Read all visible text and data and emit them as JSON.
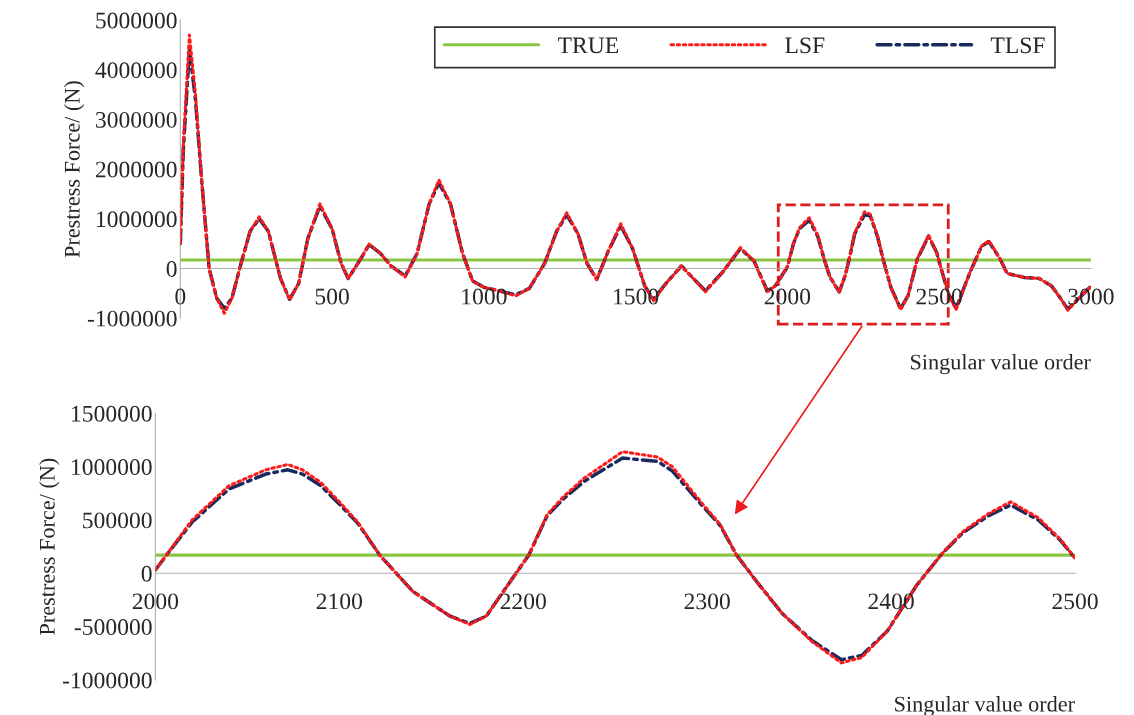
{
  "chart_data": [
    {
      "type": "line",
      "ylabel": "Prestress Force/ (N)",
      "xlabel": "Singular value order",
      "xlim": [
        0,
        3000
      ],
      "xticks": [
        0,
        500,
        1000,
        1500,
        2000,
        2500,
        3000
      ],
      "ylim": [
        -1000000,
        5000000
      ],
      "yticks": [
        -1000000,
        0,
        1000000,
        2000000,
        3000000,
        4000000,
        5000000
      ],
      "legend": "top",
      "series": [
        {
          "name": "TRUE",
          "color": "#8cc443",
          "line_style": "solid",
          "x": [
            0,
            3000
          ],
          "values": [
            170000,
            170000
          ]
        },
        {
          "name": "LSF",
          "color": "#ff1a1a",
          "line_style": "dotted",
          "x": [
            0,
            10,
            30,
            50,
            70,
            95,
            120,
            145,
            170,
            200,
            230,
            260,
            290,
            330,
            360,
            390,
            420,
            460,
            500,
            530,
            553,
            590,
            622,
            660,
            694,
            741,
            780,
            820,
            852,
            890,
            930,
            963,
            1000,
            1050,
            1105,
            1150,
            1200,
            1240,
            1273,
            1310,
            1340,
            1372,
            1410,
            1451,
            1490,
            1530,
            1559,
            1600,
            1651,
            1690,
            1730,
            1790,
            1845,
            1890,
            1934,
            1960,
            2000,
            2020,
            2040,
            2072,
            2100,
            2122,
            2140,
            2171,
            2190,
            2203,
            2222,
            2254,
            2273,
            2297,
            2316,
            2341,
            2373,
            2398,
            2428,
            2465,
            2492,
            2500,
            2530,
            2556,
            2600,
            2640,
            2664,
            2700,
            2724,
            2780,
            2829,
            2870,
            2900,
            2924,
            2960,
            2997
          ],
          "values": [
            500000,
            2500000,
            4700000,
            3500000,
            1800000,
            0,
            -600000,
            -900000,
            -600000,
            100000,
            750000,
            1040000,
            750000,
            -200000,
            -630000,
            -300000,
            600000,
            1300000,
            800000,
            100000,
            -200000,
            150000,
            490000,
            300000,
            50000,
            -170000,
            300000,
            1300000,
            1780000,
            1300000,
            300000,
            -250000,
            -380000,
            -450000,
            -550000,
            -400000,
            100000,
            750000,
            1120000,
            700000,
            100000,
            -220000,
            350000,
            900000,
            400000,
            -350000,
            -650000,
            -300000,
            50000,
            -200000,
            -470000,
            -50000,
            420000,
            150000,
            -470000,
            -350000,
            30000,
            500000,
            820000,
            1020000,
            670000,
            170000,
            -170000,
            -480000,
            -150000,
            170000,
            720000,
            1140000,
            1090000,
            660000,
            170000,
            -380000,
            -830000,
            -540000,
            190000,
            670000,
            320000,
            140000,
            -500000,
            -830000,
            -100000,
            450000,
            560000,
            200000,
            -100000,
            -180000,
            -200000,
            -350000,
            -600000,
            -840000,
            -600000,
            -380000
          ]
        },
        {
          "name": "TLSF",
          "color": "#1b2a5e",
          "line_style": "dashdot",
          "x": [
            0,
            10,
            30,
            50,
            70,
            95,
            120,
            145,
            170,
            200,
            230,
            260,
            290,
            330,
            360,
            390,
            420,
            460,
            500,
            530,
            553,
            590,
            622,
            660,
            694,
            741,
            780,
            820,
            852,
            890,
            930,
            963,
            1000,
            1050,
            1105,
            1150,
            1200,
            1240,
            1273,
            1310,
            1340,
            1372,
            1410,
            1451,
            1490,
            1530,
            1559,
            1600,
            1651,
            1690,
            1730,
            1790,
            1845,
            1890,
            1934,
            1960,
            2000,
            2020,
            2040,
            2072,
            2100,
            2122,
            2140,
            2171,
            2190,
            2203,
            2222,
            2254,
            2273,
            2297,
            2316,
            2341,
            2373,
            2398,
            2428,
            2465,
            2492,
            2500,
            2530,
            2556,
            2600,
            2640,
            2664,
            2700,
            2724,
            2780,
            2829,
            2870,
            2900,
            2924,
            2960,
            2997
          ],
          "values": [
            500000,
            2400000,
            4400000,
            3400000,
            1800000,
            0,
            -600000,
            -800000,
            -600000,
            100000,
            750000,
            1000000,
            750000,
            -200000,
            -620000,
            -300000,
            600000,
            1260000,
            800000,
            100000,
            -200000,
            150000,
            480000,
            300000,
            50000,
            -150000,
            300000,
            1300000,
            1720000,
            1300000,
            300000,
            -250000,
            -380000,
            -450000,
            -530000,
            -400000,
            100000,
            750000,
            1080000,
            700000,
            100000,
            -220000,
            350000,
            860000,
            400000,
            -350000,
            -620000,
            -300000,
            50000,
            -200000,
            -450000,
            -50000,
            400000,
            150000,
            -450000,
            -350000,
            30000,
            500000,
            800000,
            970000,
            650000,
            170000,
            -170000,
            -470000,
            -150000,
            170000,
            700000,
            1080000,
            1060000,
            640000,
            170000,
            -380000,
            -810000,
            -540000,
            190000,
            650000,
            320000,
            140000,
            -500000,
            -800000,
            -100000,
            450000,
            540000,
            200000,
            -100000,
            -180000,
            -200000,
            -350000,
            -600000,
            -820000,
            -600000,
            -380000
          ]
        }
      ]
    },
    {
      "type": "line",
      "ylabel": "Prestress Force/ (N)",
      "xlabel": "Singular value order",
      "xlim": [
        2000,
        2500
      ],
      "xticks": [
        2000,
        2100,
        2200,
        2300,
        2400,
        2500
      ],
      "ylim": [
        -1000000,
        1500000
      ],
      "yticks": [
        -1000000,
        -500000,
        0,
        500000,
        1000000,
        1500000
      ],
      "series": [
        {
          "color": "#8cc443",
          "line_style": "solid",
          "x": [
            2000,
            2500
          ],
          "values": [
            170000,
            170000
          ]
        },
        {
          "color": "#ff1a1a",
          "line_style": "dotted",
          "x": [
            2000,
            2006,
            2020,
            2040,
            2060,
            2072,
            2080,
            2090,
            2100,
            2110,
            2122,
            2140,
            2160,
            2171,
            2180,
            2190,
            2203,
            2213,
            2222,
            2233,
            2254,
            2273,
            2281,
            2297,
            2307,
            2316,
            2327,
            2341,
            2357,
            2373,
            2384,
            2398,
            2414,
            2428,
            2439,
            2453,
            2465,
            2480,
            2492,
            2500
          ],
          "values": [
            30000,
            170000,
            500000,
            820000,
            970000,
            1020000,
            970000,
            850000,
            670000,
            480000,
            170000,
            -170000,
            -400000,
            -480000,
            -400000,
            -150000,
            170000,
            550000,
            720000,
            890000,
            1140000,
            1090000,
            1000000,
            660000,
            460000,
            170000,
            -80000,
            -380000,
            -640000,
            -840000,
            -790000,
            -540000,
            -110000,
            190000,
            390000,
            560000,
            670000,
            520000,
            320000,
            140000
          ]
        },
        {
          "color": "#1b2a5e",
          "line_style": "dashdot",
          "x": [
            2000,
            2006,
            2020,
            2040,
            2060,
            2072,
            2080,
            2090,
            2100,
            2110,
            2122,
            2140,
            2160,
            2171,
            2180,
            2190,
            2203,
            2213,
            2222,
            2233,
            2254,
            2273,
            2281,
            2297,
            2307,
            2316,
            2327,
            2341,
            2357,
            2373,
            2384,
            2398,
            2414,
            2428,
            2439,
            2453,
            2465,
            2480,
            2492,
            2500
          ],
          "values": [
            30000,
            170000,
            480000,
            790000,
            930000,
            970000,
            930000,
            820000,
            650000,
            470000,
            170000,
            -170000,
            -400000,
            -470000,
            -400000,
            -150000,
            170000,
            540000,
            700000,
            860000,
            1080000,
            1050000,
            960000,
            640000,
            450000,
            170000,
            -80000,
            -380000,
            -630000,
            -810000,
            -770000,
            -540000,
            -110000,
            190000,
            380000,
            540000,
            640000,
            500000,
            310000,
            140000
          ]
        }
      ]
    }
  ]
}
